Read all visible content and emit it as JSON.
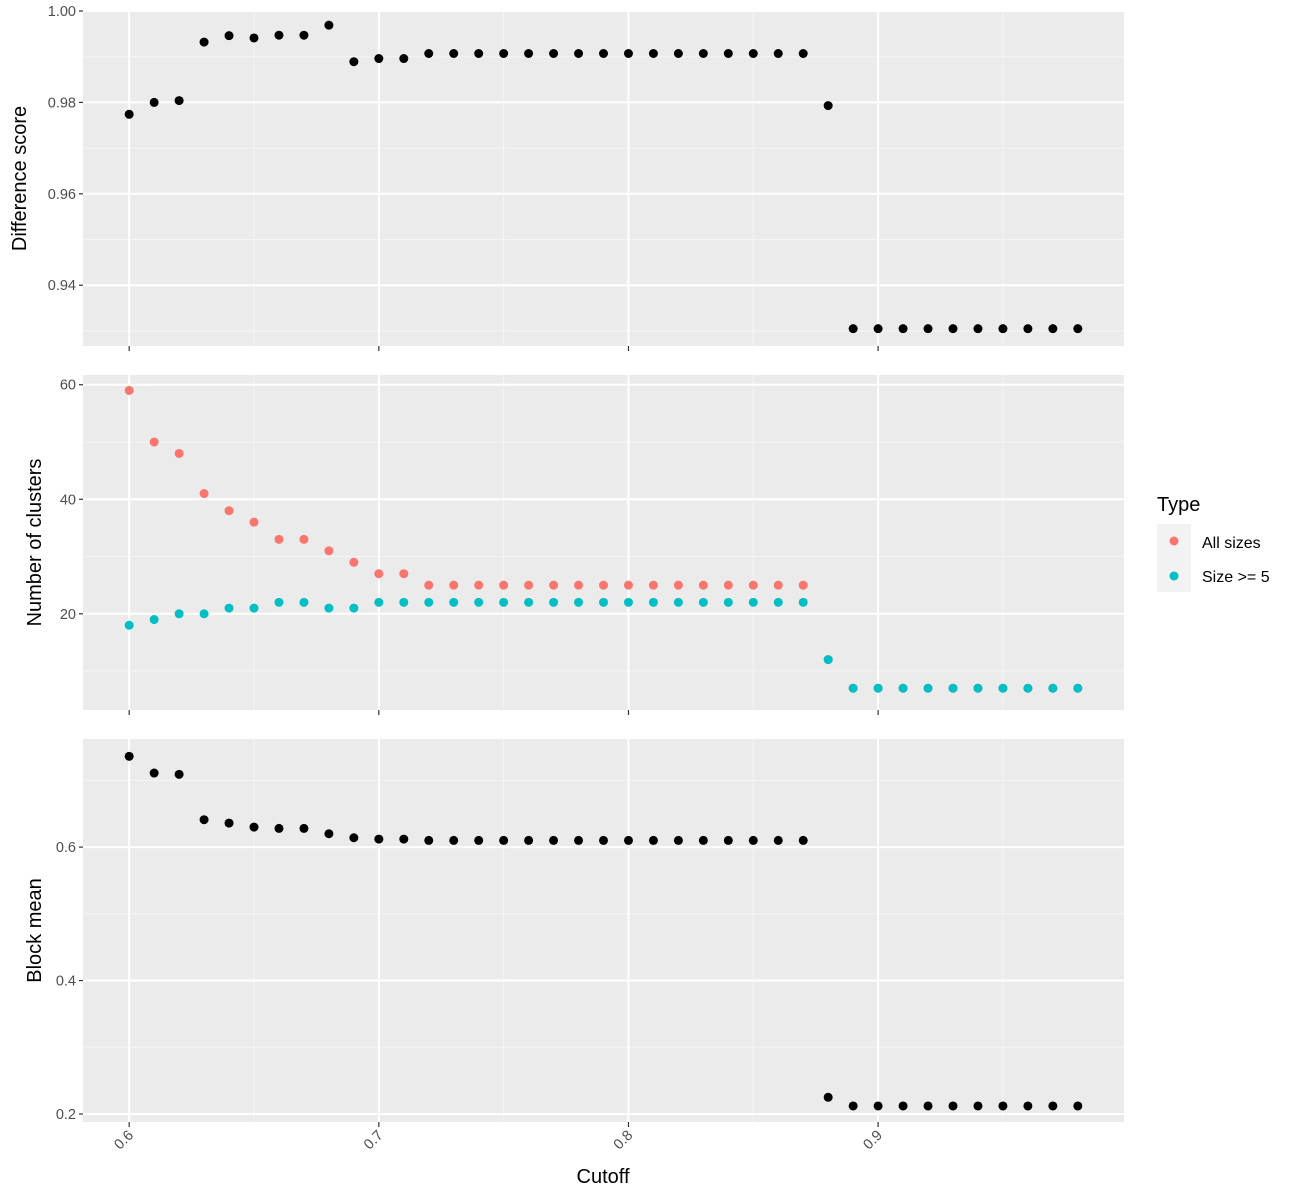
{
  "colors": {
    "panel_bg": "#EBEBEB",
    "grid_major": "#FFFFFF",
    "grid_minor": "#F5F5F5",
    "tick_text": "#4D4D4D",
    "tick_mark": "#333333",
    "axis_title": "#000000",
    "point_default": "#000000",
    "series_all_sizes": "#F8766D",
    "series_size_ge5": "#00BFC4"
  },
  "legend": {
    "title": "Type",
    "items": [
      {
        "label": "All sizes",
        "color": "#F8766D"
      },
      {
        "label": "Size >= 5",
        "color": "#00BFC4"
      }
    ]
  },
  "x_axis": {
    "title": "Cutoff",
    "ticks": [
      0.6,
      0.7,
      0.8,
      0.9
    ],
    "tick_labels": [
      "0.6",
      "0.7",
      "0.8",
      "0.9"
    ],
    "range": [
      0.5815,
      0.9985
    ]
  },
  "chart_data": [
    {
      "type": "scatter",
      "ylabel": "Difference score",
      "ylim": [
        0.9267,
        1.0
      ],
      "yticks": [
        0.94,
        0.96,
        0.98,
        1.0
      ],
      "ytick_labels": [
        "0.94",
        "0.96",
        "0.98",
        "1.00"
      ],
      "grid": true,
      "series": [
        {
          "color": "#000000",
          "x": [
            0.6,
            0.61,
            0.62,
            0.63,
            0.64,
            0.65,
            0.66,
            0.67,
            0.68,
            0.69,
            0.7,
            0.71,
            0.72,
            0.73,
            0.74,
            0.75,
            0.76,
            0.77,
            0.78,
            0.79,
            0.8,
            0.81,
            0.82,
            0.83,
            0.84,
            0.85,
            0.86,
            0.87,
            0.88,
            0.89,
            0.9,
            0.91,
            0.92,
            0.93,
            0.94,
            0.95,
            0.96,
            0.97,
            0.98
          ],
          "values": [
            0.9774,
            0.98,
            0.9804,
            0.9932,
            0.9946,
            0.9941,
            0.9947,
            0.9947,
            0.9969,
            0.9889,
            0.9896,
            0.9896,
            0.9907,
            0.9907,
            0.9907,
            0.9907,
            0.9907,
            0.9907,
            0.9907,
            0.9907,
            0.9907,
            0.9907,
            0.9907,
            0.9907,
            0.9907,
            0.9907,
            0.9907,
            0.9907,
            0.9793,
            0.9305,
            0.9305,
            0.9305,
            0.9305,
            0.9305,
            0.9305,
            0.9305,
            0.9305,
            0.9305,
            0.9305
          ]
        }
      ]
    },
    {
      "type": "scatter",
      "ylabel": "Number of clusters",
      "ylim": [
        3.2,
        61.7
      ],
      "yticks": [
        20,
        40,
        60
      ],
      "ytick_labels": [
        "20",
        "40",
        "60"
      ],
      "grid": true,
      "legend_placement": "right",
      "series": [
        {
          "name": "All sizes",
          "color": "#F8766D",
          "x": [
            0.6,
            0.61,
            0.62,
            0.63,
            0.64,
            0.65,
            0.66,
            0.67,
            0.68,
            0.69,
            0.7,
            0.71,
            0.72,
            0.73,
            0.74,
            0.75,
            0.76,
            0.77,
            0.78,
            0.79,
            0.8,
            0.81,
            0.82,
            0.83,
            0.84,
            0.85,
            0.86,
            0.87,
            0.88,
            0.89,
            0.9,
            0.91,
            0.92,
            0.93,
            0.94,
            0.95,
            0.96,
            0.97,
            0.98
          ],
          "values": [
            59,
            50,
            48,
            41,
            38,
            36,
            33,
            33,
            31,
            29,
            27,
            27,
            25,
            25,
            25,
            25,
            25,
            25,
            25,
            25,
            25,
            25,
            25,
            25,
            25,
            25,
            25,
            25,
            12,
            7,
            7,
            7,
            7,
            7,
            7,
            7,
            7,
            7,
            7
          ]
        },
        {
          "name": "Size >= 5",
          "color": "#00BFC4",
          "x": [
            0.6,
            0.61,
            0.62,
            0.63,
            0.64,
            0.65,
            0.66,
            0.67,
            0.68,
            0.69,
            0.7,
            0.71,
            0.72,
            0.73,
            0.74,
            0.75,
            0.76,
            0.77,
            0.78,
            0.79,
            0.8,
            0.81,
            0.82,
            0.83,
            0.84,
            0.85,
            0.86,
            0.87,
            0.88,
            0.89,
            0.9,
            0.91,
            0.92,
            0.93,
            0.94,
            0.95,
            0.96,
            0.97,
            0.98
          ],
          "values": [
            18,
            19,
            20,
            20,
            21,
            21,
            22,
            22,
            21,
            21,
            22,
            22,
            22,
            22,
            22,
            22,
            22,
            22,
            22,
            22,
            22,
            22,
            22,
            22,
            22,
            22,
            22,
            22,
            12,
            7,
            7,
            7,
            7,
            7,
            7,
            7,
            7,
            7,
            7
          ]
        }
      ]
    },
    {
      "type": "scatter",
      "ylabel": "Block mean",
      "ylim": [
        0.188,
        0.762
      ],
      "yticks": [
        0.2,
        0.4,
        0.6
      ],
      "ytick_labels": [
        "0.2",
        "0.4",
        "0.6"
      ],
      "grid": true,
      "series": [
        {
          "color": "#000000",
          "x": [
            0.6,
            0.61,
            0.62,
            0.63,
            0.64,
            0.65,
            0.66,
            0.67,
            0.68,
            0.69,
            0.7,
            0.71,
            0.72,
            0.73,
            0.74,
            0.75,
            0.76,
            0.77,
            0.78,
            0.79,
            0.8,
            0.81,
            0.82,
            0.83,
            0.84,
            0.85,
            0.86,
            0.87,
            0.88,
            0.89,
            0.9,
            0.91,
            0.92,
            0.93,
            0.94,
            0.95,
            0.96,
            0.97,
            0.98
          ],
          "values": [
            0.736,
            0.711,
            0.709,
            0.641,
            0.636,
            0.63,
            0.628,
            0.628,
            0.62,
            0.614,
            0.612,
            0.612,
            0.61,
            0.61,
            0.61,
            0.61,
            0.61,
            0.61,
            0.61,
            0.61,
            0.61,
            0.61,
            0.61,
            0.61,
            0.61,
            0.61,
            0.61,
            0.61,
            0.225,
            0.212,
            0.212,
            0.212,
            0.212,
            0.212,
            0.212,
            0.212,
            0.212,
            0.212,
            0.212
          ]
        }
      ]
    }
  ]
}
